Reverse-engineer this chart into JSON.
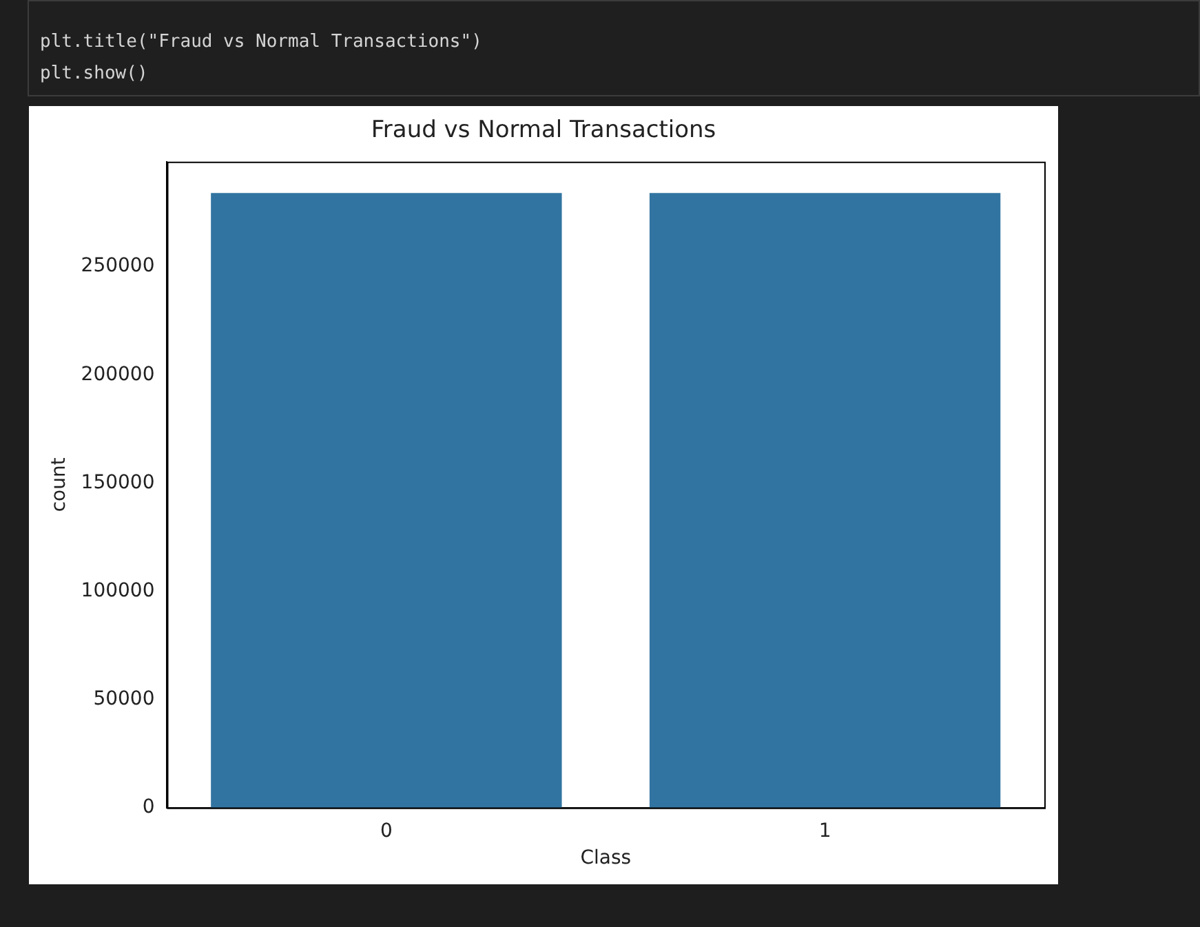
{
  "chart_data": {
    "type": "bar",
    "title": "Fraud vs Normal Transactions",
    "xlabel": "Class",
    "ylabel": "count",
    "categories": [
      "0",
      "1"
    ],
    "values": [
      284000,
      284000
    ],
    "color": "#3274a1",
    "ylim": [
      0,
      298500
    ],
    "yticks": [
      0,
      50000,
      100000,
      150000,
      200000,
      250000
    ],
    "annotations": [
      "plt.title(\"Fraud vs Normal Transactions\")",
      "plt.show()"
    ]
  }
}
